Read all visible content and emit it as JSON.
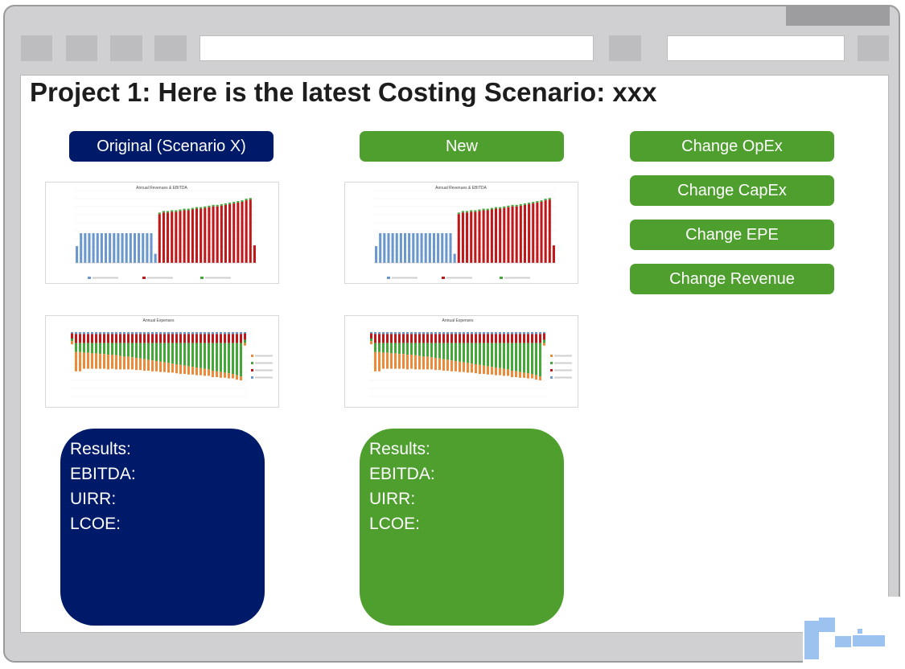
{
  "page_title": "Project 1: Here is the latest Costing Scenario: xxx",
  "columns": {
    "original": {
      "label": "Original (Scenario X)"
    },
    "new": {
      "label": "New"
    }
  },
  "actions": [
    {
      "label": "Change OpEx"
    },
    {
      "label": "Change CapEx"
    },
    {
      "label": "Change EPE"
    },
    {
      "label": "Change Revenue"
    }
  ],
  "results": {
    "original": {
      "heading": "Results:",
      "ebitda": "EBITDA:",
      "uirr": "UIRR:",
      "lcoe": "LCOE:"
    },
    "new": {
      "heading": "Results:",
      "ebitda": "EBITDA:",
      "uirr": "UIRR:",
      "lcoe": "LCOE:"
    }
  },
  "colors": {
    "navy": "#001a6a",
    "green": "#4f9f2f",
    "bar_blue": "#6a98cc",
    "bar_red": "#c0181a",
    "bar_green": "#44a838",
    "bar_orange": "#ec8a3a"
  },
  "chart_data": [
    {
      "type": "bar",
      "title": "Annual Revenues & EBITDA",
      "series": [
        {
          "values": [
            0.22,
            0.39,
            0.39,
            0.39,
            0.39,
            0.39,
            0.39,
            0.39,
            0.39,
            0.39,
            0.39,
            0.39,
            0.39,
            0.39,
            0.39,
            0.39,
            0.39,
            0.39,
            0.39,
            0.12,
            0,
            0,
            0,
            0,
            0,
            0,
            0,
            0,
            0,
            0,
            0,
            0,
            0,
            0,
            0,
            0,
            0,
            0,
            0,
            0,
            0,
            0,
            0,
            0
          ]
        },
        {
          "values": [
            0,
            0,
            0,
            0,
            0,
            0,
            0,
            0,
            0,
            0,
            0,
            0,
            0,
            0,
            0,
            0,
            0,
            0,
            0,
            0,
            0.64,
            0.66,
            0.66,
            0.67,
            0.67,
            0.68,
            0.69,
            0.69,
            0.7,
            0.71,
            0.71,
            0.72,
            0.73,
            0.74,
            0.74,
            0.75,
            0.76,
            0.77,
            0.78,
            0.79,
            0.8,
            0.82,
            0.83,
            0.23
          ]
        },
        {
          "values": [
            0,
            0,
            0,
            0,
            0,
            0,
            0,
            0,
            0,
            0,
            0,
            0,
            0,
            0,
            0,
            0,
            0,
            0,
            0,
            0,
            0.02,
            0.02,
            0.02,
            0.02,
            0.02,
            0.02,
            0.02,
            0.02,
            0.02,
            0.02,
            0.02,
            0.02,
            0.02,
            0.02,
            0.02,
            0.02,
            0.02,
            0.02,
            0.02,
            0.02,
            0.02,
            0.02,
            0.02,
            0
          ]
        }
      ]
    },
    {
      "type": "bar",
      "title": "Annual Expenses",
      "series": [
        {
          "values": [
            0.02,
            0.03,
            0.03,
            0.03,
            0.03,
            0.03,
            0.03,
            0.03,
            0.03,
            0.03,
            0.03,
            0.03,
            0.03,
            0.03,
            0.03,
            0.03,
            0.03,
            0.03,
            0.03,
            0.03,
            0.03,
            0.03,
            0.03,
            0.03,
            0.03,
            0.03,
            0.03,
            0.03,
            0.03,
            0.03,
            0.03,
            0.03,
            0.03,
            0.03,
            0.03,
            0.03,
            0.03,
            0.03,
            0.03,
            0.03,
            0.03,
            0.03,
            0.03,
            0.02
          ]
        },
        {
          "values": [
            0.08,
            0.14,
            0.14,
            0.14,
            0.14,
            0.14,
            0.14,
            0.14,
            0.14,
            0.14,
            0.14,
            0.14,
            0.14,
            0.14,
            0.14,
            0.14,
            0.14,
            0.14,
            0.14,
            0.14,
            0.14,
            0.14,
            0.14,
            0.14,
            0.14,
            0.14,
            0.14,
            0.14,
            0.14,
            0.14,
            0.14,
            0.14,
            0.14,
            0.14,
            0.14,
            0.14,
            0.14,
            0.14,
            0.14,
            0.14,
            0.14,
            0.14,
            0.14,
            0.1
          ]
        },
        {
          "values": [
            0.04,
            0.14,
            0.14,
            0.15,
            0.15,
            0.16,
            0.16,
            0.17,
            0.17,
            0.18,
            0.18,
            0.19,
            0.2,
            0.21,
            0.21,
            0.22,
            0.23,
            0.24,
            0.25,
            0.26,
            0.27,
            0.28,
            0.29,
            0.3,
            0.31,
            0.32,
            0.33,
            0.34,
            0.35,
            0.36,
            0.37,
            0.38,
            0.39,
            0.4,
            0.41,
            0.43,
            0.44,
            0.45,
            0.46,
            0.47,
            0.48,
            0.5,
            0.52,
            0.05
          ]
        },
        {
          "values": [
            0.05,
            0.3,
            0.3,
            0.25,
            0.25,
            0.24,
            0.24,
            0.23,
            0.23,
            0.23,
            0.22,
            0.22,
            0.21,
            0.2,
            0.2,
            0.19,
            0.19,
            0.18,
            0.18,
            0.17,
            0.17,
            0.16,
            0.16,
            0.15,
            0.15,
            0.14,
            0.14,
            0.14,
            0.13,
            0.13,
            0.12,
            0.12,
            0.11,
            0.11,
            0.1,
            0.1,
            0.09,
            0.09,
            0.08,
            0.08,
            0.07,
            0.07,
            0.06,
            0.04
          ]
        }
      ]
    }
  ]
}
